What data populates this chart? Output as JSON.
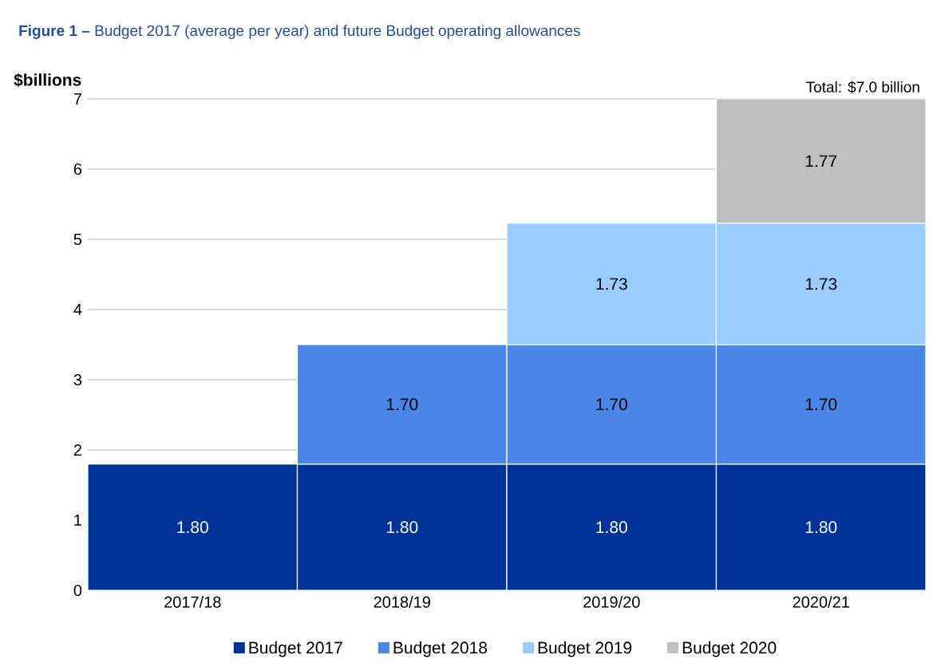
{
  "chart_data": {
    "type": "bar",
    "stacked": true,
    "title": "**Figure 1 –** Budget 2017 (average per year) and future Budget operating allowances",
    "ylabel": "$billions",
    "annotations": [
      "Total: $7.0 billion"
    ],
    "categories": [
      "2017/18",
      "2018/19",
      "2019/20",
      "2020/21"
    ],
    "series": [
      {
        "name": "Budget 2017",
        "color": "#003399",
        "values": [
          1.8,
          1.8,
          1.8,
          1.8
        ],
        "value_labels": [
          "1.80",
          "1.80",
          "1.80",
          "1.80"
        ]
      },
      {
        "name": "Budget 2018",
        "color": "#4a86e8",
        "values": [
          null,
          1.7,
          1.7,
          1.7
        ],
        "value_labels": [
          null,
          "1.70",
          "1.70",
          "1.70"
        ]
      },
      {
        "name": "Budget 2019",
        "color": "#99ccff",
        "values": [
          null,
          null,
          1.73,
          1.73
        ],
        "value_labels": [
          null,
          null,
          "1.73",
          "1.73"
        ]
      },
      {
        "name": "Budget 2020",
        "color": "#bfbfbf",
        "values": [
          null,
          null,
          null,
          1.77
        ],
        "value_labels": [
          null,
          null,
          null,
          "1.77"
        ]
      }
    ],
    "ylim": [
      0,
      7
    ],
    "yticks": [
      0,
      1,
      2,
      3,
      4,
      5,
      6,
      7
    ],
    "grid": "y",
    "legend": "bottom"
  }
}
